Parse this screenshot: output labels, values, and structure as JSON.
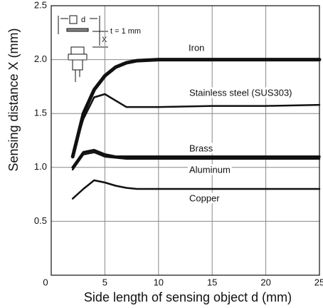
{
  "chart_data": {
    "type": "line",
    "x_label": "Side length of sensing object d (mm)",
    "y_label": "Sensing distance X (mm)",
    "x": [
      2,
      3,
      4,
      5,
      6,
      7,
      8,
      10,
      15,
      20,
      25
    ],
    "series": [
      {
        "name": "Iron",
        "color": "#111111",
        "values": [
          1.1,
          1.5,
          1.72,
          1.85,
          1.93,
          1.97,
          1.99,
          2.0,
          2.0,
          2.0,
          2.0
        ]
      },
      {
        "name": "Stainless steel (SUS303)",
        "color": "#111111",
        "values": [
          1.12,
          1.45,
          1.65,
          1.68,
          1.62,
          1.56,
          1.56,
          1.56,
          1.57,
          1.57,
          1.58
        ]
      },
      {
        "name": "Brass",
        "color": "#111111",
        "values": [
          1.0,
          1.14,
          1.16,
          1.12,
          1.1,
          1.1,
          1.1,
          1.1,
          1.1,
          1.1,
          1.1
        ]
      },
      {
        "name": "Aluminum",
        "color": "#111111",
        "values": [
          0.98,
          1.12,
          1.14,
          1.1,
          1.09,
          1.08,
          1.08,
          1.08,
          1.08,
          1.08,
          1.08
        ]
      },
      {
        "name": "Copper",
        "color": "#111111",
        "values": [
          0.71,
          0.8,
          0.88,
          0.86,
          0.83,
          0.81,
          0.8,
          0.8,
          0.8,
          0.8,
          0.8
        ]
      }
    ],
    "xlim": [
      0,
      25
    ],
    "xticks": [
      0,
      5,
      10,
      15,
      20,
      25
    ],
    "ylim": [
      0,
      2.5
    ],
    "yticks": [
      0.5,
      {
        "value": 1,
        "label": "1.0"
      },
      1.5,
      {
        "value": 2,
        "label": "2.0"
      },
      2.5
    ],
    "grid": true,
    "annotations": [
      "d",
      "X",
      "t = 1 mm"
    ]
  }
}
